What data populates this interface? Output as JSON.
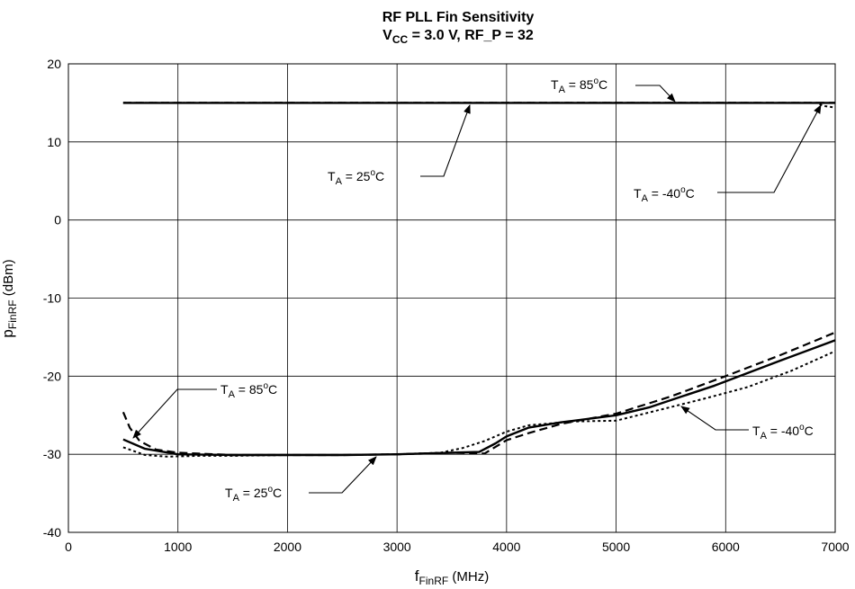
{
  "chart_data": {
    "type": "line",
    "title_line1": "RF PLL Fin Sensitivity",
    "title_line2": {
      "v": "V",
      "v_sub": "CC",
      "eq": " = 3.0 V, RF_P = 32"
    },
    "xlabel": {
      "main": "f",
      "sub": "FinRF",
      "rest": " (MHz)"
    },
    "ylabel": {
      "main": "p",
      "sub": "FinRF",
      "rest": " (dBm)"
    },
    "xlim": [
      0,
      7000
    ],
    "ylim": [
      -40,
      20
    ],
    "x_ticks": [
      0,
      1000,
      2000,
      3000,
      4000,
      5000,
      6000,
      7000
    ],
    "y_ticks": [
      20,
      10,
      0,
      -10,
      -20,
      -30,
      -40
    ],
    "grid": true,
    "legend": "none",
    "series": [
      {
        "name": "T_A = 25°C",
        "style": "solid",
        "group": "upper",
        "points": [
          [
            500,
            15
          ],
          [
            7000,
            15
          ]
        ]
      },
      {
        "name": "T_A = 85°C",
        "style": "dashed",
        "group": "upper",
        "points": [
          [
            500,
            15
          ],
          [
            7000,
            15
          ]
        ]
      },
      {
        "name": "T_A = -40°C",
        "style": "dotted",
        "group": "upper",
        "points": [
          [
            500,
            15
          ],
          [
            6830,
            15
          ],
          [
            6900,
            14.6
          ],
          [
            7000,
            14.4
          ]
        ]
      },
      {
        "name": "T_A = 25°C",
        "style": "solid",
        "group": "lower",
        "points": [
          [
            500,
            -28.1
          ],
          [
            700,
            -29.3
          ],
          [
            1000,
            -30.0
          ],
          [
            1500,
            -30.1
          ],
          [
            2000,
            -30.1
          ],
          [
            2500,
            -30.1
          ],
          [
            3000,
            -30.0
          ],
          [
            3500,
            -29.8
          ],
          [
            3750,
            -29.7
          ],
          [
            3900,
            -28.6
          ],
          [
            4000,
            -27.7
          ],
          [
            4200,
            -26.6
          ],
          [
            4500,
            -25.9
          ],
          [
            5000,
            -25.0
          ],
          [
            5300,
            -24.0
          ],
          [
            5600,
            -22.6
          ],
          [
            5900,
            -21.2
          ],
          [
            6200,
            -19.6
          ],
          [
            6500,
            -18.0
          ],
          [
            7000,
            -15.4
          ]
        ]
      },
      {
        "name": "T_A = 85°C",
        "style": "dashed",
        "group": "lower",
        "points": [
          [
            500,
            -24.6
          ],
          [
            560,
            -26.6
          ],
          [
            650,
            -28.3
          ],
          [
            800,
            -29.4
          ],
          [
            1000,
            -29.8
          ],
          [
            1500,
            -30.1
          ],
          [
            2000,
            -30.1
          ],
          [
            2500,
            -30.1
          ],
          [
            3000,
            -30.0
          ],
          [
            3500,
            -29.8
          ],
          [
            3800,
            -29.9
          ],
          [
            4000,
            -28.2
          ],
          [
            4200,
            -27.3
          ],
          [
            4500,
            -26.1
          ],
          [
            5000,
            -24.8
          ],
          [
            5500,
            -22.6
          ],
          [
            6000,
            -20.0
          ],
          [
            6500,
            -17.3
          ],
          [
            7000,
            -14.4
          ]
        ]
      },
      {
        "name": "T_A = -40°C",
        "style": "dotted",
        "group": "lower",
        "points": [
          [
            500,
            -29.1
          ],
          [
            700,
            -30.1
          ],
          [
            900,
            -30.3
          ],
          [
            1200,
            -30.2
          ],
          [
            1500,
            -30.2
          ],
          [
            2000,
            -30.1
          ],
          [
            2500,
            -30.1
          ],
          [
            3000,
            -30.0
          ],
          [
            3400,
            -29.8
          ],
          [
            3600,
            -29.2
          ],
          [
            3800,
            -28.3
          ],
          [
            4000,
            -27.1
          ],
          [
            4200,
            -26.3
          ],
          [
            4600,
            -25.8
          ],
          [
            5000,
            -25.7
          ],
          [
            5400,
            -24.3
          ],
          [
            5800,
            -22.9
          ],
          [
            6200,
            -21.4
          ],
          [
            6600,
            -19.3
          ],
          [
            7000,
            -16.8
          ]
        ]
      }
    ],
    "annotations": [
      {
        "id": "upper-85",
        "T": "T",
        "sub": "A",
        "val": " = 85",
        "unit": "C"
      },
      {
        "id": "upper-25",
        "T": "T",
        "sub": "A",
        "val": " = 25",
        "unit": "C"
      },
      {
        "id": "upper-m40",
        "T": "T",
        "sub": "A",
        "val": " = -40",
        "unit": "C"
      },
      {
        "id": "lower-85",
        "T": "T",
        "sub": "A",
        "val": " = 85",
        "unit": "C"
      },
      {
        "id": "lower-25",
        "T": "T",
        "sub": "A",
        "val": " = 25",
        "unit": "C"
      },
      {
        "id": "lower-m40",
        "T": "T",
        "sub": "A",
        "val": " = -40",
        "unit": "C"
      }
    ],
    "degree_mark": "o"
  }
}
